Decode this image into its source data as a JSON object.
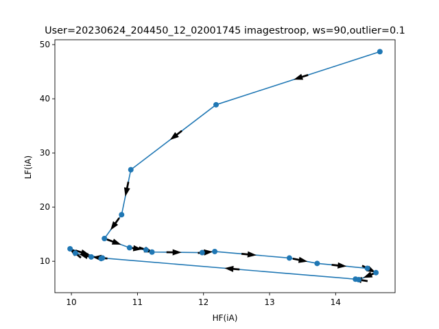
{
  "chart_data": {
    "type": "line",
    "title": "User=20230624_204450_12_02001745 imagestroop, ws=90,outlier=0.1",
    "xlabel": "HF(iA)",
    "ylabel": "LF(iA)",
    "xlim": [
      9.75,
      14.9
    ],
    "ylim": [
      4.2,
      50.9
    ],
    "x_ticks": [
      10,
      11,
      12,
      13,
      14
    ],
    "y_ticks": [
      10,
      20,
      30,
      40,
      50
    ],
    "grid": false,
    "markers": true,
    "arrows": "direction of travel along the path",
    "series": [
      {
        "color": "#1f77b4",
        "x": [
          14.67,
          12.19,
          10.9,
          10.76,
          10.5,
          10.88,
          11.13,
          11.22,
          11.98,
          12.17,
          13.3,
          13.72,
          14.48,
          14.61,
          14.35,
          14.3,
          10.47,
          10.3,
          10.06,
          9.98,
          10.45
        ],
        "y": [
          48.7,
          38.9,
          26.9,
          18.6,
          14.2,
          12.5,
          12.1,
          11.7,
          11.6,
          11.8,
          10.6,
          9.6,
          8.7,
          7.9,
          6.6,
          6.7,
          10.6,
          10.8,
          11.5,
          12.3,
          10.5
        ]
      }
    ]
  }
}
